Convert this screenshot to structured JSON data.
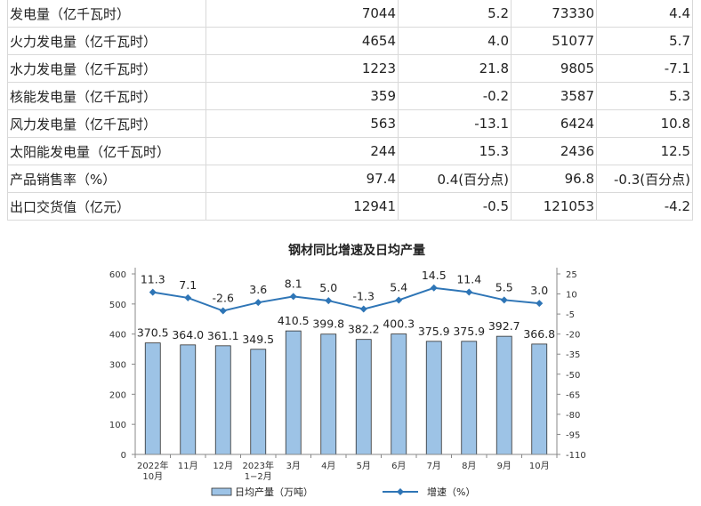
{
  "table": {
    "rows": [
      {
        "name": "发电量（亿千瓦时）",
        "values": [
          "7044",
          "5.2",
          "73330",
          "4.4"
        ]
      },
      {
        "name": "火力发电量（亿千瓦时）",
        "values": [
          "4654",
          "4.0",
          "51077",
          "5.7"
        ]
      },
      {
        "name": "水力发电量（亿千瓦时）",
        "values": [
          "1223",
          "21.8",
          "9805",
          "-7.1"
        ]
      },
      {
        "name": "核能发电量（亿千瓦时）",
        "values": [
          "359",
          "-0.2",
          "3587",
          "5.3"
        ]
      },
      {
        "name": "风力发电量（亿千瓦时）",
        "values": [
          "563",
          "-13.1",
          "6424",
          "10.8"
        ]
      },
      {
        "name": "太阳能发电量（亿千瓦时）",
        "values": [
          "244",
          "15.3",
          "2436",
          "12.5"
        ]
      },
      {
        "name": "产品销售率（%）",
        "values": [
          "97.4",
          "0.4(百分点)",
          "96.8",
          "-0.3(百分点)"
        ]
      },
      {
        "name": "出口交货值（亿元）",
        "values": [
          "12941",
          "-0.5",
          "121053",
          "-4.2"
        ]
      }
    ]
  },
  "chart_data": {
    "type": "bar+line",
    "title": "钢材同比增速及日均产量",
    "categories": [
      {
        "line1": "2022年",
        "line2": "10月"
      },
      {
        "line1": "11月",
        "line2": ""
      },
      {
        "line1": "12月",
        "line2": ""
      },
      {
        "line1": "2023年",
        "line2": "1−2月"
      },
      {
        "line1": "3月",
        "line2": ""
      },
      {
        "line1": "4月",
        "line2": ""
      },
      {
        "line1": "5月",
        "line2": ""
      },
      {
        "line1": "6月",
        "line2": ""
      },
      {
        "line1": "7月",
        "line2": ""
      },
      {
        "line1": "8月",
        "line2": ""
      },
      {
        "line1": "9月",
        "line2": ""
      },
      {
        "line1": "10月",
        "line2": ""
      }
    ],
    "series": [
      {
        "name": "日均产量（万吨）",
        "type": "bar",
        "axis": "left",
        "color": "#9dc3e6",
        "values": [
          370.5,
          364.0,
          361.1,
          349.5,
          410.5,
          399.8,
          382.2,
          400.3,
          375.9,
          375.9,
          392.7,
          366.8
        ],
        "labels": [
          "370.5",
          "364.0",
          "361.1",
          "349.5",
          "410.5",
          "399.8",
          "382.2",
          "400.3",
          "375.9",
          "375.9",
          "392.7",
          "366.8"
        ]
      },
      {
        "name": "增速（%）",
        "type": "line",
        "axis": "right",
        "color": "#2e75b6",
        "values": [
          11.3,
          7.1,
          -2.6,
          3.6,
          8.1,
          5.0,
          -1.3,
          5.4,
          14.5,
          11.4,
          5.5,
          3.0
        ],
        "labels": [
          "11.3",
          "7.1",
          "-2.6",
          "3.6",
          "8.1",
          "5.0",
          "-1.3",
          "5.4",
          "14.5",
          "11.4",
          "5.5",
          "3.0"
        ]
      }
    ],
    "y_left": {
      "min": 0,
      "max": 600,
      "ticks": [
        "0",
        "100",
        "200",
        "300",
        "400",
        "500",
        "600"
      ]
    },
    "y_right": {
      "min": -110,
      "max": 25,
      "ticks": [
        "25",
        "10",
        "-5",
        "-20",
        "-35",
        "-50",
        "-65",
        "-80",
        "-95",
        "-110"
      ]
    },
    "legend": {
      "position": "bottom",
      "bar_label": "日均产量（万吨）",
      "line_label": "增速（%）"
    },
    "grid": false
  }
}
